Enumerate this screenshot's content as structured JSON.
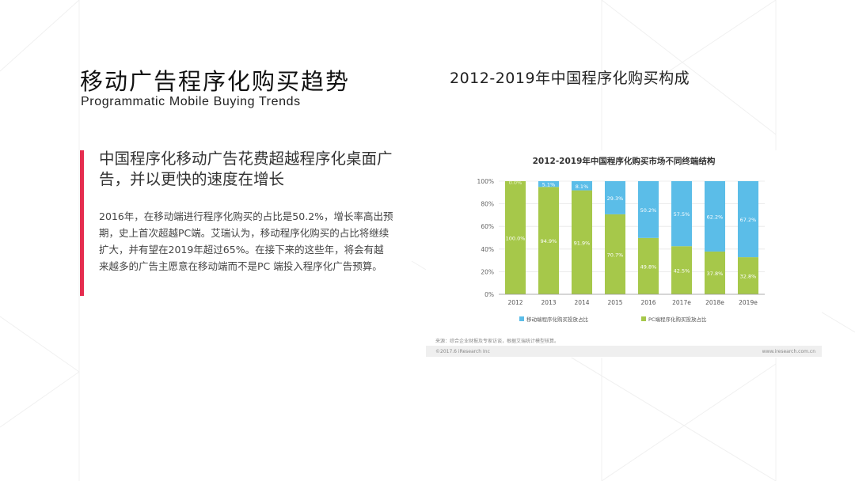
{
  "slide": {
    "title_cn": "移动广告程序化购买趋势",
    "title_en": "Programmatic Mobile Buying Trends",
    "headline": "中国程序化移动广告花费超越程序化桌面广告，并以更快的速度在增长",
    "body": "2016年，在移动端进行程序化购买的占比是50.2%，增长率高出预期，史上首次超越PC端。艾瑞认为，移动程序化购买的占比将继续扩大，并有望在2019年超过65%。在接下来的这些年，将会有越来越多的广告主愿意在移动端而不是PC 端投入程序化广告预算。",
    "chart_heading": "2012-2019年中国程序化购买构成",
    "accent_color": "#e52d4f"
  },
  "chart_data": {
    "type": "bar",
    "stacked": true,
    "title": "2012-2019年中国程序化购买市场不同终端结构",
    "categories": [
      "2012",
      "2013",
      "2014",
      "2015",
      "2016",
      "2017e",
      "2018e",
      "2019e"
    ],
    "series": [
      {
        "name": "PC端程序化购买投放占比",
        "color": "#a6c84a",
        "values": [
          100.0,
          94.9,
          91.9,
          70.7,
          49.8,
          42.5,
          37.8,
          32.8
        ],
        "labels": [
          "100.0%",
          "94.9%",
          "91.9%",
          "70.7%",
          "49.8%",
          "42.5%",
          "37.8%",
          "32.8%"
        ]
      },
      {
        "name": "移动端程序化购买投放占比",
        "color": "#5bbde8",
        "values": [
          0.0,
          5.1,
          8.1,
          29.3,
          50.2,
          57.5,
          62.2,
          67.2
        ],
        "labels": [
          "0.0%",
          "5.1%",
          "8.1%",
          "29.3%",
          "50.2%",
          "57.5%",
          "62.2%",
          "67.2%"
        ]
      }
    ],
    "ylim": [
      0,
      100
    ],
    "yticks": [
      "0%",
      "20%",
      "40%",
      "60%",
      "80%",
      "100%"
    ],
    "grid": true,
    "legend": "bottom",
    "source": "来源：综合企业财报及专家访谈，根据艾瑞统计模型核算。",
    "copyright": "©2017.6 iResearch Inc",
    "website": "www.iresearch.com.cn"
  }
}
